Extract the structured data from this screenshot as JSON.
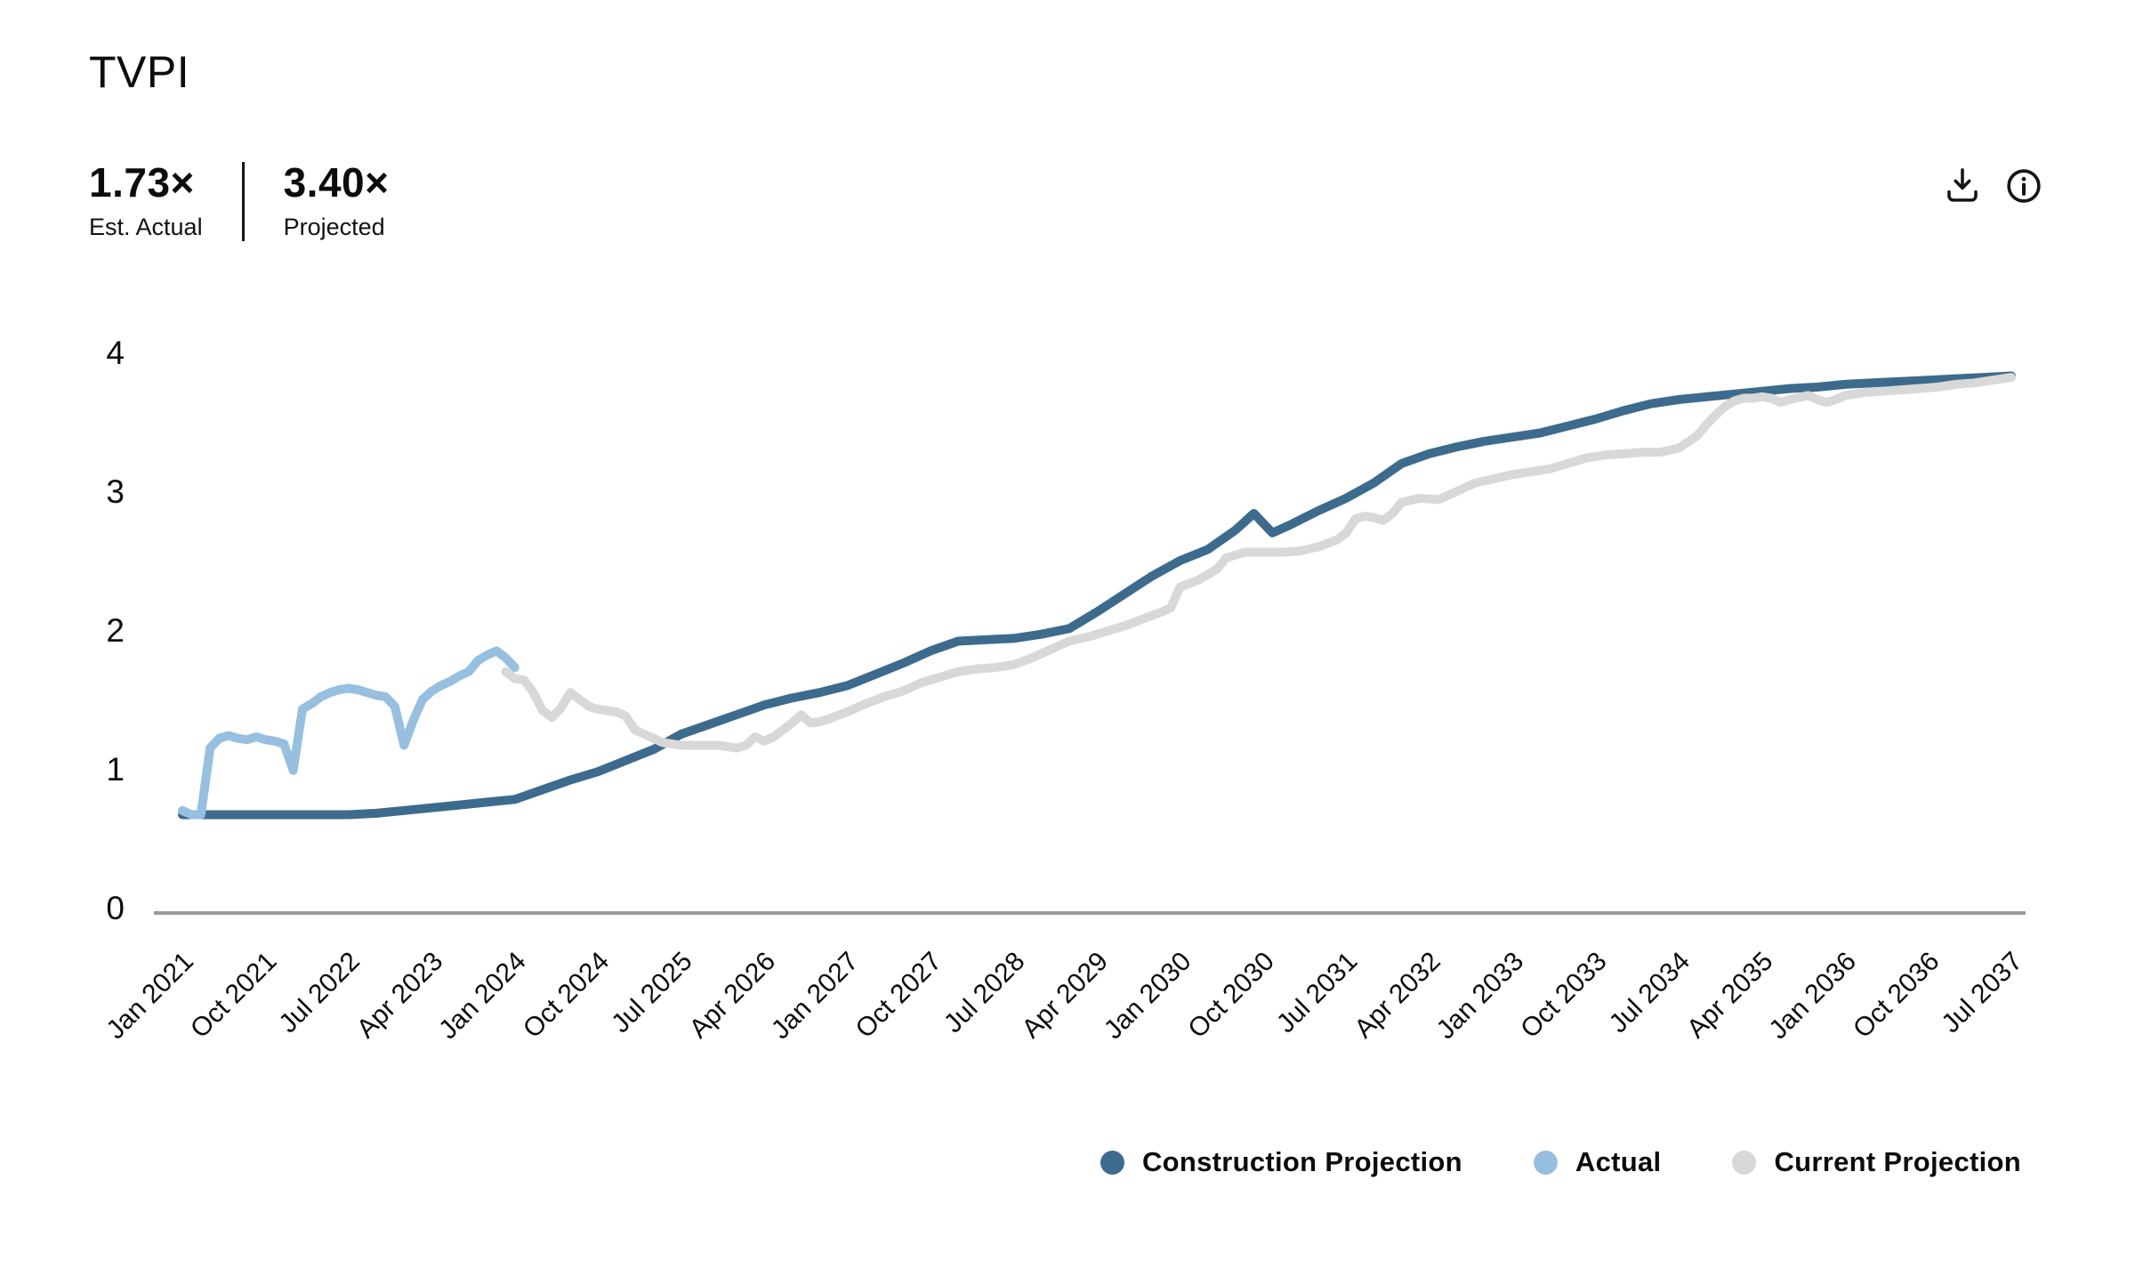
{
  "header": {
    "title": "TVPI"
  },
  "stats": {
    "primary": {
      "value": "1.73×",
      "label": "Est. Actual"
    },
    "secondary": {
      "value": "3.40×",
      "label": "Projected"
    }
  },
  "toolbar": {
    "buttons": [
      {
        "name": "download",
        "icon": "download-icon"
      },
      {
        "name": "info",
        "icon": "info-icon"
      }
    ]
  },
  "legend": {
    "items": [
      {
        "label": "Construction Projection",
        "color": "#3c6b8e"
      },
      {
        "label": "Actual",
        "color": "#97bfdf"
      },
      {
        "label": "Current Projection",
        "color": "#d8d8d8"
      }
    ]
  },
  "chart_data": {
    "type": "line",
    "title": "TVPI",
    "xlabel": "",
    "ylabel": "",
    "grid": false,
    "legend_position": "bottom-right",
    "x_unit": "months since Jan 2021",
    "xlim": [
      0,
      198
    ],
    "ylim": [
      0,
      4
    ],
    "y_ticks": [
      4,
      3,
      2,
      1,
      0
    ],
    "x_tick_months": [
      0,
      9,
      18,
      27,
      36,
      45,
      54,
      63,
      72,
      81,
      90,
      99,
      108,
      117,
      126,
      135,
      144,
      153,
      162,
      171,
      180,
      189,
      198
    ],
    "categories": [
      "Jan 2021",
      "Oct 2021",
      "Jul 2022",
      "Apr 2023",
      "Jan 2024",
      "Oct 2024",
      "Jul 2025",
      "Apr 2026",
      "Jan 2027",
      "Oct 2027",
      "Jul 2028",
      "Apr 2029",
      "Jan 2030",
      "Oct 2030",
      "Jul 2031",
      "Apr 2032",
      "Jan 2033",
      "Oct 2033",
      "Jul 2034",
      "Apr 2035",
      "Jan 2036",
      "Oct 2036",
      "Jul 2037"
    ],
    "series": [
      {
        "id": "construction-projection",
        "name": "Construction Projection",
        "color": "#3c6b8e",
        "points": [
          [
            0,
            0.67
          ],
          [
            3,
            0.67
          ],
          [
            6,
            0.67
          ],
          [
            9,
            0.67
          ],
          [
            12,
            0.67
          ],
          [
            15,
            0.67
          ],
          [
            18,
            0.67
          ],
          [
            21,
            0.68
          ],
          [
            24,
            0.7
          ],
          [
            27,
            0.72
          ],
          [
            30,
            0.74
          ],
          [
            33,
            0.76
          ],
          [
            36,
            0.78
          ],
          [
            39,
            0.85
          ],
          [
            42,
            0.92
          ],
          [
            45,
            0.98
          ],
          [
            48,
            1.06
          ],
          [
            51,
            1.14
          ],
          [
            54,
            1.25
          ],
          [
            57,
            1.32
          ],
          [
            60,
            1.39
          ],
          [
            63,
            1.46
          ],
          [
            66,
            1.51
          ],
          [
            69,
            1.55
          ],
          [
            72,
            1.6
          ],
          [
            75,
            1.68
          ],
          [
            78,
            1.76
          ],
          [
            81,
            1.85
          ],
          [
            84,
            1.92
          ],
          [
            87,
            1.93
          ],
          [
            90,
            1.94
          ],
          [
            93,
            1.97
          ],
          [
            96,
            2.01
          ],
          [
            99,
            2.13
          ],
          [
            102,
            2.26
          ],
          [
            105,
            2.39
          ],
          [
            108,
            2.5
          ],
          [
            111,
            2.58
          ],
          [
            114,
            2.72
          ],
          [
            116,
            2.84
          ],
          [
            118,
            2.7
          ],
          [
            120,
            2.76
          ],
          [
            123,
            2.86
          ],
          [
            126,
            2.95
          ],
          [
            129,
            3.06
          ],
          [
            132,
            3.2
          ],
          [
            135,
            3.27
          ],
          [
            138,
            3.32
          ],
          [
            141,
            3.36
          ],
          [
            144,
            3.39
          ],
          [
            147,
            3.42
          ],
          [
            150,
            3.47
          ],
          [
            153,
            3.52
          ],
          [
            156,
            3.58
          ],
          [
            159,
            3.63
          ],
          [
            162,
            3.66
          ],
          [
            165,
            3.68
          ],
          [
            168,
            3.7
          ],
          [
            171,
            3.72
          ],
          [
            174,
            3.74
          ],
          [
            177,
            3.75
          ],
          [
            180,
            3.77
          ],
          [
            183,
            3.78
          ],
          [
            186,
            3.79
          ],
          [
            189,
            3.8
          ],
          [
            192,
            3.81
          ],
          [
            195,
            3.82
          ],
          [
            198,
            3.83
          ]
        ]
      },
      {
        "id": "current-projection",
        "name": "Current Projection",
        "color": "#d8d8d8",
        "points": [
          [
            35,
            1.7
          ],
          [
            36,
            1.65
          ],
          [
            37,
            1.64
          ],
          [
            38,
            1.55
          ],
          [
            39,
            1.42
          ],
          [
            40,
            1.37
          ],
          [
            41,
            1.44
          ],
          [
            42,
            1.55
          ],
          [
            43,
            1.5
          ],
          [
            44,
            1.45
          ],
          [
            45,
            1.43
          ],
          [
            46,
            1.42
          ],
          [
            47,
            1.41
          ],
          [
            48,
            1.38
          ],
          [
            49,
            1.28
          ],
          [
            50,
            1.25
          ],
          [
            51,
            1.22
          ],
          [
            52,
            1.19
          ],
          [
            54,
            1.17
          ],
          [
            56,
            1.17
          ],
          [
            58,
            1.17
          ],
          [
            60,
            1.15
          ],
          [
            61,
            1.17
          ],
          [
            62,
            1.23
          ],
          [
            63,
            1.2
          ],
          [
            64,
            1.23
          ],
          [
            65,
            1.28
          ],
          [
            66,
            1.33
          ],
          [
            67,
            1.39
          ],
          [
            68,
            1.33
          ],
          [
            69,
            1.34
          ],
          [
            70,
            1.36
          ],
          [
            72,
            1.41
          ],
          [
            74,
            1.47
          ],
          [
            76,
            1.52
          ],
          [
            78,
            1.56
          ],
          [
            80,
            1.62
          ],
          [
            82,
            1.66
          ],
          [
            84,
            1.7
          ],
          [
            86,
            1.72
          ],
          [
            88,
            1.73
          ],
          [
            90,
            1.75
          ],
          [
            92,
            1.8
          ],
          [
            94,
            1.86
          ],
          [
            96,
            1.92
          ],
          [
            98,
            1.95
          ],
          [
            100,
            1.99
          ],
          [
            102,
            2.03
          ],
          [
            104,
            2.08
          ],
          [
            106,
            2.13
          ],
          [
            107,
            2.16
          ],
          [
            108,
            2.31
          ],
          [
            110,
            2.36
          ],
          [
            112,
            2.44
          ],
          [
            113,
            2.52
          ],
          [
            115,
            2.56
          ],
          [
            117,
            2.56
          ],
          [
            119,
            2.56
          ],
          [
            121,
            2.57
          ],
          [
            123,
            2.6
          ],
          [
            125,
            2.65
          ],
          [
            126,
            2.7
          ],
          [
            127,
            2.8
          ],
          [
            128,
            2.82
          ],
          [
            129,
            2.81
          ],
          [
            130,
            2.79
          ],
          [
            131,
            2.84
          ],
          [
            132,
            2.92
          ],
          [
            134,
            2.95
          ],
          [
            136,
            2.94
          ],
          [
            138,
            3.0
          ],
          [
            140,
            3.06
          ],
          [
            142,
            3.09
          ],
          [
            144,
            3.12
          ],
          [
            146,
            3.14
          ],
          [
            148,
            3.16
          ],
          [
            150,
            3.2
          ],
          [
            152,
            3.24
          ],
          [
            154,
            3.26
          ],
          [
            156,
            3.27
          ],
          [
            158,
            3.28
          ],
          [
            160,
            3.28
          ],
          [
            162,
            3.31
          ],
          [
            164,
            3.4
          ],
          [
            165,
            3.48
          ],
          [
            166,
            3.55
          ],
          [
            167,
            3.61
          ],
          [
            168,
            3.65
          ],
          [
            169,
            3.67
          ],
          [
            170,
            3.67
          ],
          [
            171,
            3.68
          ],
          [
            172,
            3.67
          ],
          [
            173,
            3.64
          ],
          [
            174,
            3.66
          ],
          [
            176,
            3.69
          ],
          [
            177,
            3.66
          ],
          [
            178,
            3.64
          ],
          [
            179,
            3.66
          ],
          [
            180,
            3.69
          ],
          [
            182,
            3.71
          ],
          [
            184,
            3.72
          ],
          [
            186,
            3.73
          ],
          [
            188,
            3.74
          ],
          [
            190,
            3.75
          ],
          [
            192,
            3.77
          ],
          [
            194,
            3.78
          ],
          [
            196,
            3.8
          ],
          [
            198,
            3.82
          ]
        ]
      },
      {
        "id": "actual",
        "name": "Actual",
        "color": "#97bfdf",
        "points": [
          [
            0,
            0.7
          ],
          [
            1,
            0.67
          ],
          [
            2,
            0.67
          ],
          [
            3,
            1.15
          ],
          [
            4,
            1.22
          ],
          [
            5,
            1.24
          ],
          [
            6,
            1.22
          ],
          [
            7,
            1.21
          ],
          [
            8,
            1.23
          ],
          [
            9,
            1.21
          ],
          [
            10,
            1.2
          ],
          [
            11,
            1.18
          ],
          [
            12,
            0.99
          ],
          [
            13,
            1.43
          ],
          [
            14,
            1.47
          ],
          [
            15,
            1.52
          ],
          [
            16,
            1.55
          ],
          [
            17,
            1.57
          ],
          [
            18,
            1.58
          ],
          [
            19,
            1.57
          ],
          [
            20,
            1.55
          ],
          [
            21,
            1.53
          ],
          [
            22,
            1.52
          ],
          [
            23,
            1.45
          ],
          [
            24,
            1.17
          ],
          [
            25,
            1.35
          ],
          [
            26,
            1.5
          ],
          [
            27,
            1.56
          ],
          [
            28,
            1.6
          ],
          [
            29,
            1.63
          ],
          [
            30,
            1.67
          ],
          [
            31,
            1.7
          ],
          [
            32,
            1.78
          ],
          [
            33,
            1.82
          ],
          [
            34,
            1.85
          ],
          [
            35,
            1.8
          ],
          [
            36,
            1.73
          ]
        ]
      }
    ]
  }
}
